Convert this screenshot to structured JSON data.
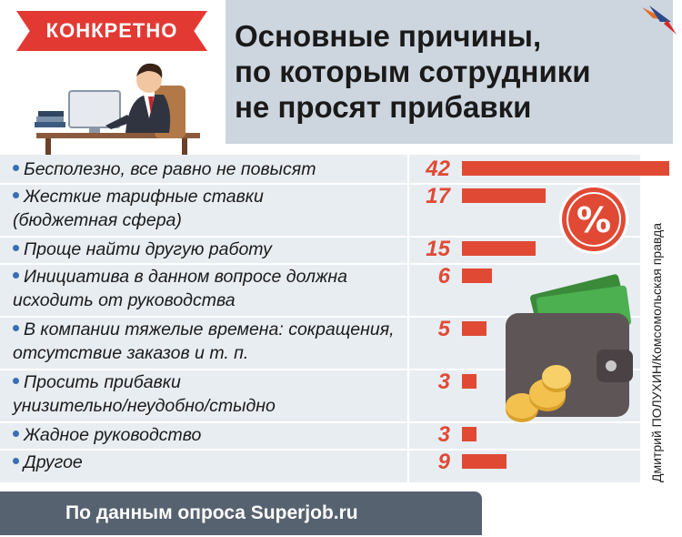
{
  "badge": "КОНКРЕТНО",
  "title": "Основные причины,\nпо которым сотрудники\nне просят прибавки",
  "credit": "Дмитрий ПОЛУХИН/Комсомольская правда",
  "footer": "По данным опроса Superjob.ru",
  "colors": {
    "bar": "#e04a35",
    "badge": "#e23a33",
    "panel": "#cdd6df",
    "bullet": "#3a6fb0",
    "footer": "#566270"
  },
  "chart_data": {
    "type": "bar",
    "orientation": "horizontal",
    "categories": [
      [
        "Бесполезно, все равно не повысят"
      ],
      [
        "Жесткие тарифные ставки",
        "(бюджетная сфера)"
      ],
      [
        "Проще найти другую работу"
      ],
      [
        "Инициатива в данном вопросе должна",
        "исходить от руководства"
      ],
      [
        "В компании тяжелые времена: сокращения,",
        "отсутствие заказов и т. п."
      ],
      [
        "Просить прибавки",
        "унизительно/неудобно/стыдно"
      ],
      [
        "Жадное руководство"
      ],
      [
        "Другое"
      ]
    ],
    "values": [
      42,
      17,
      15,
      6,
      5,
      3,
      3,
      9
    ],
    "xlim": [
      0,
      42
    ]
  }
}
